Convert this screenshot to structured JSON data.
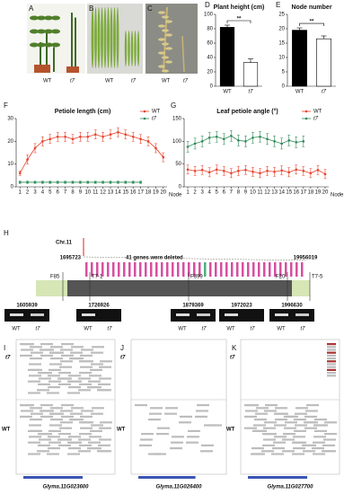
{
  "panel_labels": [
    "A",
    "B",
    "C",
    "D",
    "E",
    "F",
    "G",
    "H",
    "I",
    "J",
    "K"
  ],
  "genotypes": [
    "WT",
    "t7"
  ],
  "chart_data": [
    {
      "type": "bar",
      "title": "Plant height (cm)",
      "categories": [
        "WT",
        "t7"
      ],
      "values": [
        82,
        33
      ],
      "errors": [
        3,
        5
      ],
      "colors": [
        "#000000",
        "#ffffff"
      ],
      "ylim": [
        0,
        100
      ],
      "yticks": [
        0,
        20,
        40,
        60,
        80,
        100
      ],
      "significance": "**"
    },
    {
      "type": "bar",
      "title": "Node number",
      "categories": [
        "WT",
        "t7"
      ],
      "values": [
        19.5,
        16.5
      ],
      "errors": [
        0.8,
        1
      ],
      "colors": [
        "#000000",
        "#ffffff"
      ],
      "ylim": [
        0,
        25
      ],
      "yticks": [
        0,
        5,
        10,
        15,
        20,
        25
      ],
      "significance": "**"
    },
    {
      "type": "line",
      "title": "Petiole length (cm)",
      "xlabel": "Node",
      "x": [
        1,
        2,
        3,
        4,
        5,
        6,
        7,
        8,
        9,
        10,
        11,
        12,
        13,
        14,
        15,
        16,
        17,
        18,
        19,
        20
      ],
      "series": [
        {
          "name": "WT",
          "color": "#e8412c",
          "values": [
            6,
            12,
            17,
            20,
            21,
            22,
            22,
            21,
            22,
            22,
            23,
            22,
            23,
            24,
            23,
            22,
            21,
            20,
            17,
            13
          ],
          "errors": [
            1,
            2,
            2,
            2,
            2,
            2,
            2,
            2,
            2,
            2,
            2,
            2,
            2,
            2,
            2,
            2,
            2,
            2,
            2,
            2
          ]
        },
        {
          "name": "t7",
          "color": "#2e8b57",
          "values": [
            2,
            2,
            2,
            2,
            2,
            2,
            2,
            2,
            2,
            2,
            2,
            2,
            2,
            2,
            2,
            2,
            2,
            null,
            null,
            null
          ],
          "errors": [
            0.5,
            0.5,
            0.5,
            0.5,
            0.5,
            0.5,
            0.5,
            0.5,
            0.5,
            0.5,
            0.5,
            0.5,
            0.5,
            0.5,
            0.5,
            0.5,
            0.5,
            null,
            null,
            null
          ]
        }
      ],
      "xlim": [
        0.5,
        20.5
      ],
      "xticks": [
        1,
        2,
        3,
        4,
        5,
        6,
        7,
        8,
        9,
        10,
        11,
        12,
        13,
        14,
        15,
        16,
        17,
        18,
        19,
        20
      ],
      "ylim": [
        0,
        30
      ],
      "yticks": [
        0,
        10,
        20,
        30
      ]
    },
    {
      "type": "line",
      "title": "Leaf petiole angle (°)",
      "xlabel": "Node",
      "x": [
        1,
        2,
        3,
        4,
        5,
        6,
        7,
        8,
        9,
        10,
        11,
        12,
        13,
        14,
        15,
        16,
        17,
        18,
        19,
        20
      ],
      "series": [
        {
          "name": "WT",
          "color": "#e8412c",
          "values": [
            38,
            35,
            37,
            32,
            38,
            35,
            30,
            35,
            37,
            33,
            30,
            35,
            33,
            36,
            32,
            38,
            35,
            30,
            37,
            28
          ],
          "errors": [
            10,
            10,
            10,
            10,
            10,
            10,
            10,
            10,
            10,
            10,
            10,
            10,
            10,
            10,
            10,
            10,
            10,
            10,
            10,
            10
          ]
        },
        {
          "name": "t7",
          "color": "#2e8b57",
          "values": [
            88,
            95,
            100,
            108,
            110,
            105,
            112,
            102,
            100,
            108,
            110,
            105,
            100,
            95,
            102,
            98,
            100,
            null,
            null,
            null
          ],
          "errors": [
            12,
            12,
            12,
            12,
            12,
            12,
            12,
            12,
            12,
            12,
            12,
            12,
            12,
            12,
            12,
            12,
            12,
            null,
            null,
            null
          ]
        }
      ],
      "xlim": [
        0.5,
        20.5
      ],
      "xticks": [
        1,
        2,
        3,
        4,
        5,
        6,
        7,
        8,
        9,
        10,
        11,
        12,
        13,
        14,
        15,
        16,
        17,
        18,
        19,
        20
      ],
      "ylim": [
        0,
        150
      ],
      "yticks": [
        0,
        50,
        100,
        150
      ]
    }
  ],
  "gene_map": {
    "chromosome": "Chr.11",
    "left_position": "1695723",
    "right_position": "19956019",
    "deletion_note": "41 genes were deleted",
    "markers": [
      "F85",
      "T7-1",
      "F399",
      "F20",
      "T7-5"
    ],
    "gel_positions": [
      "1605939",
      "1726926",
      "1879369",
      "1972023",
      "1996630"
    ]
  },
  "igv": {
    "genes": [
      "Glyma.11G023600",
      "Glyma.11G026400",
      "Glyma.11G027700"
    ]
  }
}
